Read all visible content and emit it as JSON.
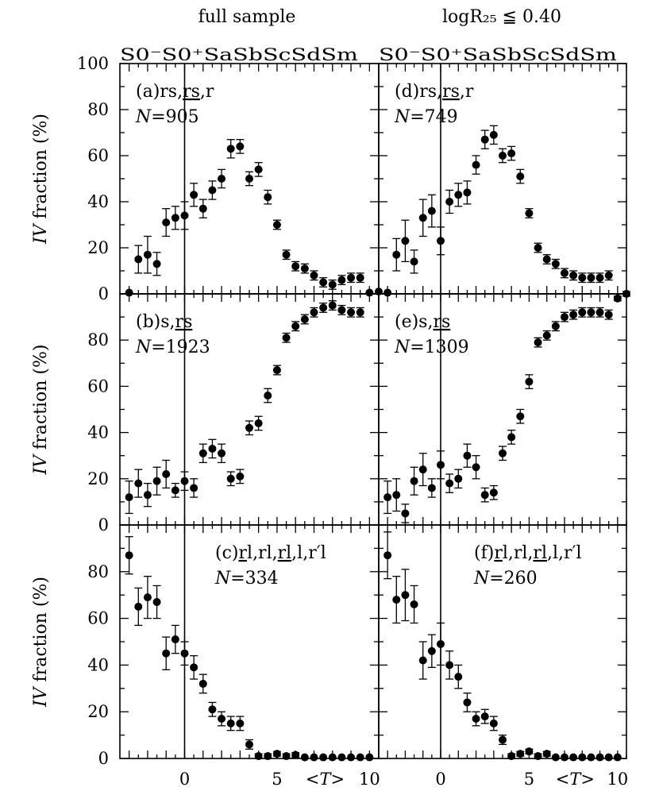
{
  "figure": {
    "column_titles": [
      "full sample",
      "logR₂₅ ≦ 0.40"
    ],
    "morph_types": [
      "S0⁻",
      "S0⁺",
      "Sa",
      "Sb",
      "Sc",
      "Sd",
      "Sm"
    ],
    "ylabel_italic": "IV",
    "ylabel_rest": " fraction (%)",
    "x_tick_labels": [
      "0",
      "5",
      "10"
    ],
    "x_axis_label": "<T>"
  },
  "chart_data": [
    {
      "type": "scatter",
      "panel": "(a)",
      "label": "(a)rs,rs,r",
      "label_parts": [
        {
          "t": "(a)rs,",
          "u": false
        },
        {
          "t": "rs",
          "u": true
        },
        {
          "t": ",r",
          "u": false
        }
      ],
      "n_label": "N=905",
      "xlim": [
        -3.5,
        10.5
      ],
      "ylim": [
        0,
        100
      ],
      "y_ticks": [
        0,
        20,
        40,
        60,
        80,
        100
      ],
      "points": [
        {
          "x": -3.0,
          "y": 0.5,
          "err": 0
        },
        {
          "x": -2.5,
          "y": 15,
          "err": 6
        },
        {
          "x": -2.0,
          "y": 17,
          "err": 8
        },
        {
          "x": -1.5,
          "y": 13,
          "err": 5
        },
        {
          "x": -1.0,
          "y": 31,
          "err": 6
        },
        {
          "x": -0.5,
          "y": 33,
          "err": 5
        },
        {
          "x": 0.0,
          "y": 34,
          "err": 6
        },
        {
          "x": 0.5,
          "y": 43,
          "err": 5
        },
        {
          "x": 1.0,
          "y": 37,
          "err": 4
        },
        {
          "x": 1.5,
          "y": 45,
          "err": 4
        },
        {
          "x": 2.0,
          "y": 50,
          "err": 4
        },
        {
          "x": 2.5,
          "y": 63,
          "err": 4
        },
        {
          "x": 3.0,
          "y": 64,
          "err": 3
        },
        {
          "x": 3.5,
          "y": 50,
          "err": 3
        },
        {
          "x": 4.0,
          "y": 54,
          "err": 3
        },
        {
          "x": 4.5,
          "y": 42,
          "err": 3
        },
        {
          "x": 5.0,
          "y": 30,
          "err": 2
        },
        {
          "x": 5.5,
          "y": 17,
          "err": 2
        },
        {
          "x": 6.0,
          "y": 12,
          "err": 2
        },
        {
          "x": 6.5,
          "y": 11,
          "err": 2
        },
        {
          "x": 7.0,
          "y": 8,
          "err": 2
        },
        {
          "x": 7.5,
          "y": 5,
          "err": 2
        },
        {
          "x": 8.0,
          "y": 4,
          "err": 2
        },
        {
          "x": 8.5,
          "y": 6,
          "err": 2
        },
        {
          "x": 9.0,
          "y": 7,
          "err": 2
        },
        {
          "x": 9.5,
          "y": 7,
          "err": 2
        },
        {
          "x": 10.0,
          "y": 0.5,
          "err": 0
        },
        {
          "x": 10.5,
          "y": 1,
          "err": 0
        }
      ]
    },
    {
      "type": "scatter",
      "panel": "(b)",
      "label": "(b)s,rs",
      "label_parts": [
        {
          "t": "(b)s,",
          "u": false
        },
        {
          "t": "rs",
          "u": true
        }
      ],
      "n_label": "N=1923",
      "xlim": [
        -3.5,
        10.5
      ],
      "ylim": [
        0,
        100
      ],
      "y_ticks": [
        0,
        20,
        40,
        60,
        80
      ],
      "points": [
        {
          "x": -3.0,
          "y": 12,
          "err": 7
        },
        {
          "x": -2.5,
          "y": 18,
          "err": 6
        },
        {
          "x": -2.0,
          "y": 13,
          "err": 5
        },
        {
          "x": -1.5,
          "y": 19,
          "err": 6
        },
        {
          "x": -1.0,
          "y": 22,
          "err": 6
        },
        {
          "x": -0.5,
          "y": 15,
          "err": 3
        },
        {
          "x": 0.0,
          "y": 19,
          "err": 4
        },
        {
          "x": 0.5,
          "y": 16,
          "err": 4
        },
        {
          "x": 1.0,
          "y": 31,
          "err": 4
        },
        {
          "x": 1.5,
          "y": 33,
          "err": 4
        },
        {
          "x": 2.0,
          "y": 31,
          "err": 4
        },
        {
          "x": 2.5,
          "y": 20,
          "err": 3
        },
        {
          "x": 3.0,
          "y": 21,
          "err": 3
        },
        {
          "x": 3.5,
          "y": 42,
          "err": 3
        },
        {
          "x": 4.0,
          "y": 44,
          "err": 3
        },
        {
          "x": 4.5,
          "y": 56,
          "err": 3
        },
        {
          "x": 5.0,
          "y": 67,
          "err": 2
        },
        {
          "x": 5.5,
          "y": 81,
          "err": 2
        },
        {
          "x": 6.0,
          "y": 86,
          "err": 2
        },
        {
          "x": 6.5,
          "y": 89,
          "err": 2
        },
        {
          "x": 7.0,
          "y": 92,
          "err": 2
        },
        {
          "x": 7.5,
          "y": 94,
          "err": 2
        },
        {
          "x": 8.0,
          "y": 95,
          "err": 2
        },
        {
          "x": 8.5,
          "y": 93,
          "err": 2
        },
        {
          "x": 9.0,
          "y": 92,
          "err": 2
        },
        {
          "x": 9.5,
          "y": 92,
          "err": 2
        }
      ]
    },
    {
      "type": "scatter",
      "panel": "(c)",
      "label": "(c)rl,rl,rl,l,r′l",
      "label_parts": [
        {
          "t": "(c)",
          "u": false
        },
        {
          "t": "r",
          "u": true
        },
        {
          "t": "l,rl,",
          "u": false
        },
        {
          "t": "rl",
          "u": true
        },
        {
          "t": ",l,r′l",
          "u": false
        }
      ],
      "n_label": "N=334",
      "xlim": [
        -3.5,
        10.5
      ],
      "ylim": [
        0,
        100
      ],
      "y_ticks": [
        0,
        20,
        40,
        60,
        80
      ],
      "points": [
        {
          "x": -3.0,
          "y": 87,
          "err": 8
        },
        {
          "x": -2.5,
          "y": 65,
          "err": 8
        },
        {
          "x": -2.0,
          "y": 69,
          "err": 9
        },
        {
          "x": -1.5,
          "y": 67,
          "err": 7
        },
        {
          "x": -1.0,
          "y": 45,
          "err": 7
        },
        {
          "x": -0.5,
          "y": 51,
          "err": 6
        },
        {
          "x": 0.0,
          "y": 45,
          "err": 5
        },
        {
          "x": 0.5,
          "y": 39,
          "err": 5
        },
        {
          "x": 1.0,
          "y": 32,
          "err": 4
        },
        {
          "x": 1.5,
          "y": 21,
          "err": 3
        },
        {
          "x": 2.0,
          "y": 17,
          "err": 3
        },
        {
          "x": 2.5,
          "y": 15,
          "err": 3
        },
        {
          "x": 3.0,
          "y": 15,
          "err": 3
        },
        {
          "x": 3.5,
          "y": 6,
          "err": 2
        },
        {
          "x": 4.0,
          "y": 1,
          "err": 1
        },
        {
          "x": 4.5,
          "y": 1,
          "err": 1
        },
        {
          "x": 5.0,
          "y": 2,
          "err": 1
        },
        {
          "x": 5.5,
          "y": 1,
          "err": 1
        },
        {
          "x": 6.0,
          "y": 1.5,
          "err": 1
        },
        {
          "x": 6.5,
          "y": 0.5,
          "err": 0
        },
        {
          "x": 7.0,
          "y": 0.5,
          "err": 0
        },
        {
          "x": 7.5,
          "y": 0.5,
          "err": 0
        },
        {
          "x": 8.0,
          "y": 0.5,
          "err": 0
        },
        {
          "x": 8.5,
          "y": 0.5,
          "err": 0
        },
        {
          "x": 9.0,
          "y": 0.5,
          "err": 0
        },
        {
          "x": 9.5,
          "y": 0.5,
          "err": 0
        },
        {
          "x": 10.0,
          "y": 0.5,
          "err": 0
        }
      ]
    },
    {
      "type": "scatter",
      "panel": "(d)",
      "label": "(d)rs,rs,r",
      "label_parts": [
        {
          "t": "(d)rs,",
          "u": false
        },
        {
          "t": "rs",
          "u": true
        },
        {
          "t": ",r",
          "u": false
        }
      ],
      "n_label": "N=749",
      "xlim": [
        -3.5,
        10.5
      ],
      "ylim": [
        0,
        100
      ],
      "y_ticks": [
        0,
        20,
        40,
        60,
        80,
        100
      ],
      "points": [
        {
          "x": -3.0,
          "y": 0.5,
          "err": 0
        },
        {
          "x": -2.5,
          "y": 17,
          "err": 7
        },
        {
          "x": -2.0,
          "y": 23,
          "err": 9
        },
        {
          "x": -1.5,
          "y": 14,
          "err": 5
        },
        {
          "x": -1.0,
          "y": 33,
          "err": 8
        },
        {
          "x": -0.5,
          "y": 36,
          "err": 7
        },
        {
          "x": 0.0,
          "y": 23,
          "err": 6
        },
        {
          "x": 0.5,
          "y": 40,
          "err": 5
        },
        {
          "x": 1.0,
          "y": 43,
          "err": 5
        },
        {
          "x": 1.5,
          "y": 44,
          "err": 5
        },
        {
          "x": 2.0,
          "y": 56,
          "err": 4
        },
        {
          "x": 2.5,
          "y": 67,
          "err": 4
        },
        {
          "x": 3.0,
          "y": 69,
          "err": 4
        },
        {
          "x": 3.5,
          "y": 60,
          "err": 3
        },
        {
          "x": 4.0,
          "y": 61,
          "err": 3
        },
        {
          "x": 4.5,
          "y": 51,
          "err": 3
        },
        {
          "x": 5.0,
          "y": 35,
          "err": 2
        },
        {
          "x": 5.5,
          "y": 20,
          "err": 2
        },
        {
          "x": 6.0,
          "y": 15,
          "err": 2
        },
        {
          "x": 6.5,
          "y": 13,
          "err": 2
        },
        {
          "x": 7.0,
          "y": 9,
          "err": 2
        },
        {
          "x": 7.5,
          "y": 8,
          "err": 2
        },
        {
          "x": 8.0,
          "y": 7,
          "err": 2
        },
        {
          "x": 8.5,
          "y": 7,
          "err": 2
        },
        {
          "x": 9.0,
          "y": 7,
          "err": 2
        },
        {
          "x": 9.5,
          "y": 8,
          "err": 2
        },
        {
          "x": 10.0,
          "y": -2,
          "err": 1
        },
        {
          "x": 10.5,
          "y": 0,
          "err": 1
        }
      ]
    },
    {
      "type": "scatter",
      "panel": "(e)",
      "label": "(e)s,rs",
      "label_parts": [
        {
          "t": "(e)s,",
          "u": false
        },
        {
          "t": "rs",
          "u": true
        }
      ],
      "n_label": "N=1309",
      "xlim": [
        -3.5,
        10.5
      ],
      "ylim": [
        0,
        100
      ],
      "y_ticks": [
        0,
        20,
        40,
        60,
        80
      ],
      "points": [
        {
          "x": -3.0,
          "y": 12,
          "err": 7
        },
        {
          "x": -2.5,
          "y": 13,
          "err": 7
        },
        {
          "x": -2.0,
          "y": 5,
          "err": 4
        },
        {
          "x": -1.5,
          "y": 19,
          "err": 6
        },
        {
          "x": -1.0,
          "y": 24,
          "err": 7
        },
        {
          "x": -0.5,
          "y": 16,
          "err": 4
        },
        {
          "x": 0.0,
          "y": 26,
          "err": 6
        },
        {
          "x": 0.5,
          "y": 18,
          "err": 4
        },
        {
          "x": 1.0,
          "y": 20,
          "err": 4
        },
        {
          "x": 1.5,
          "y": 30,
          "err": 5
        },
        {
          "x": 2.0,
          "y": 25,
          "err": 5
        },
        {
          "x": 2.5,
          "y": 13,
          "err": 3
        },
        {
          "x": 3.0,
          "y": 14,
          "err": 3
        },
        {
          "x": 3.5,
          "y": 31,
          "err": 3
        },
        {
          "x": 4.0,
          "y": 38,
          "err": 3
        },
        {
          "x": 4.5,
          "y": 47,
          "err": 3
        },
        {
          "x": 5.0,
          "y": 62,
          "err": 3
        },
        {
          "x": 5.5,
          "y": 79,
          "err": 2
        },
        {
          "x": 6.0,
          "y": 82,
          "err": 2
        },
        {
          "x": 6.5,
          "y": 86,
          "err": 2
        },
        {
          "x": 7.0,
          "y": 90,
          "err": 2
        },
        {
          "x": 7.5,
          "y": 91,
          "err": 2
        },
        {
          "x": 8.0,
          "y": 92,
          "err": 2
        },
        {
          "x": 8.5,
          "y": 92,
          "err": 2
        },
        {
          "x": 9.0,
          "y": 92,
          "err": 2
        },
        {
          "x": 9.5,
          "y": 91,
          "err": 2
        }
      ]
    },
    {
      "type": "scatter",
      "panel": "(f)",
      "label": "(f)rl,rl,rl,l,r′l",
      "label_parts": [
        {
          "t": "(f)",
          "u": false
        },
        {
          "t": "r",
          "u": true
        },
        {
          "t": "l,rl,",
          "u": false
        },
        {
          "t": "rl",
          "u": true
        },
        {
          "t": ",l,r′l",
          "u": false
        }
      ],
      "n_label": "N=260",
      "xlim": [
        -3.5,
        10.5
      ],
      "ylim": [
        0,
        100
      ],
      "y_ticks": [
        0,
        20,
        40,
        60,
        80
      ],
      "points": [
        {
          "x": -3.0,
          "y": 87,
          "err": 10
        },
        {
          "x": -2.5,
          "y": 68,
          "err": 10
        },
        {
          "x": -2.0,
          "y": 70,
          "err": 11
        },
        {
          "x": -1.5,
          "y": 66,
          "err": 8
        },
        {
          "x": -1.0,
          "y": 42,
          "err": 8
        },
        {
          "x": -0.5,
          "y": 46,
          "err": 7
        },
        {
          "x": 0.0,
          "y": 49,
          "err": 9
        },
        {
          "x": 0.5,
          "y": 40,
          "err": 6
        },
        {
          "x": 1.0,
          "y": 35,
          "err": 5
        },
        {
          "x": 1.5,
          "y": 24,
          "err": 4
        },
        {
          "x": 2.0,
          "y": 17,
          "err": 3
        },
        {
          "x": 2.5,
          "y": 18,
          "err": 3
        },
        {
          "x": 3.0,
          "y": 15,
          "err": 3
        },
        {
          "x": 3.5,
          "y": 8,
          "err": 2
        },
        {
          "x": 4.0,
          "y": 1,
          "err": 1
        },
        {
          "x": 4.5,
          "y": 2,
          "err": 1
        },
        {
          "x": 5.0,
          "y": 3,
          "err": 1
        },
        {
          "x": 5.5,
          "y": 1,
          "err": 1
        },
        {
          "x": 6.0,
          "y": 2,
          "err": 1
        },
        {
          "x": 6.5,
          "y": 0.5,
          "err": 0
        },
        {
          "x": 7.0,
          "y": 0.5,
          "err": 0
        },
        {
          "x": 7.5,
          "y": 0.5,
          "err": 0
        },
        {
          "x": 8.0,
          "y": 0.5,
          "err": 0
        },
        {
          "x": 8.5,
          "y": 0.5,
          "err": 0
        },
        {
          "x": 9.0,
          "y": 0.5,
          "err": 0
        },
        {
          "x": 9.5,
          "y": 0.5,
          "err": 0
        },
        {
          "x": 10.0,
          "y": 0.5,
          "err": 0
        }
      ]
    }
  ]
}
